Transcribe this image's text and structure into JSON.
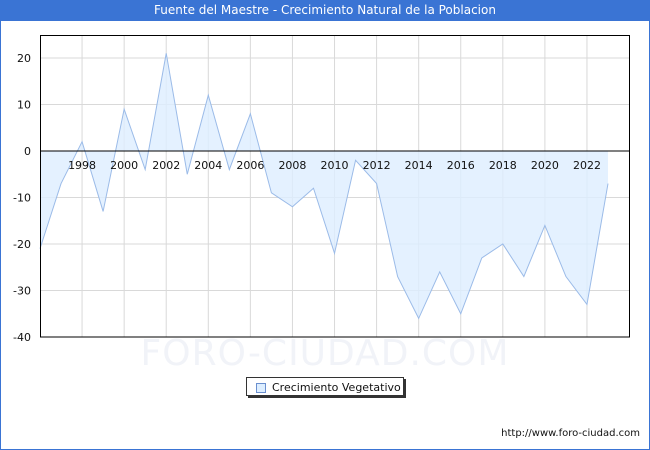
{
  "header": {
    "title": "Fuente del Maestre - Crecimiento Natural de la Poblacion"
  },
  "legend": {
    "label": "Crecimiento Vegetativo"
  },
  "footer": {
    "source": "http://www.foro-ciudad.com"
  },
  "watermark": "FORO-CIUDAD.COM",
  "colors": {
    "title_bg": "#3a74d4",
    "area_fill": "#ddeeff",
    "line": "#9bbbe8",
    "grid": "#d9d9d9"
  },
  "chart_data": {
    "type": "area",
    "title": "Fuente del Maestre - Crecimiento Natural de la Poblacion",
    "xlabel": "",
    "ylabel": "",
    "x": [
      1996,
      1997,
      1998,
      1999,
      2000,
      2001,
      2002,
      2003,
      2004,
      2005,
      2006,
      2007,
      2008,
      2009,
      2010,
      2011,
      2012,
      2013,
      2014,
      2015,
      2016,
      2017,
      2018,
      2019,
      2020,
      2021,
      2022,
      2023
    ],
    "series": [
      {
        "name": "Crecimiento Vegetativo",
        "values": [
          -21,
          -7,
          2,
          -13,
          9,
          -4,
          21,
          -5,
          12,
          -4,
          8,
          -9,
          -12,
          -8,
          -22,
          -2,
          -7,
          -27,
          -36,
          -26,
          -35,
          -23,
          -20,
          -27,
          -16,
          -27,
          -33,
          -7
        ]
      }
    ],
    "x_tick_labels": [
      "1998",
      "2000",
      "2002",
      "2004",
      "2006",
      "2008",
      "2010",
      "2012",
      "2014",
      "2016",
      "2018",
      "2020",
      "2022"
    ],
    "y_tick_labels": [
      "20",
      "10",
      "0",
      "-10",
      "-20",
      "-30",
      "-40"
    ],
    "ylim": [
      -40,
      25
    ],
    "grid": true,
    "legend_position": "bottom-center"
  }
}
